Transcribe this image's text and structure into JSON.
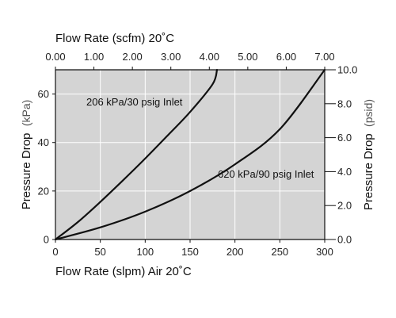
{
  "chart_data": {
    "type": "line",
    "plot_background": "#d4d4d4",
    "grid_color": "#ffffff",
    "line_color": "#111111",
    "xaxis_bottom": {
      "label": "Flow Rate (slpm) Air 20˚C",
      "range": [
        0,
        300
      ],
      "ticks": [
        "0",
        "50",
        "100",
        "150",
        "200",
        "250",
        "300"
      ]
    },
    "xaxis_top": {
      "label": "Flow Rate (scfm) 20˚C",
      "range": [
        0,
        7
      ],
      "ticks": [
        "0.00",
        "1.00",
        "2.00",
        "3.00",
        "4.00",
        "5.00",
        "6.00",
        "7.00"
      ]
    },
    "yaxis_left": {
      "label_main": "Pressure Drop",
      "label_unit": "(kPa)",
      "range": [
        0,
        70
      ],
      "ticks": [
        "0",
        "20",
        "40",
        "60"
      ]
    },
    "yaxis_right": {
      "label_main": "Pressure Drop",
      "label_unit": "(psid)",
      "range": [
        0,
        10
      ],
      "ticks": [
        "0.0",
        "2.0",
        "4.0",
        "6.0",
        "8.0",
        "10.0"
      ]
    },
    "series": [
      {
        "name": "206 kPa/30 psig Inlet",
        "x": [
          0,
          25,
          50,
          75,
          100,
          125,
          150,
          175,
          180
        ],
        "y": [
          0,
          7.2,
          15.5,
          24.3,
          33.4,
          42.9,
          52.6,
          64.0,
          70.0
        ]
      },
      {
        "name": "620 kPa/90 psig Inlet",
        "x": [
          0,
          50,
          100,
          150,
          200,
          250,
          300
        ],
        "y": [
          0,
          5.0,
          11.5,
          20.0,
          31.0,
          45.5,
          70.0
        ]
      }
    ],
    "annotations": [
      {
        "text": "206 kPa/30 psig Inlet",
        "series": 0
      },
      {
        "text": "620 kPa/90 psig Inlet",
        "series": 1
      }
    ]
  }
}
